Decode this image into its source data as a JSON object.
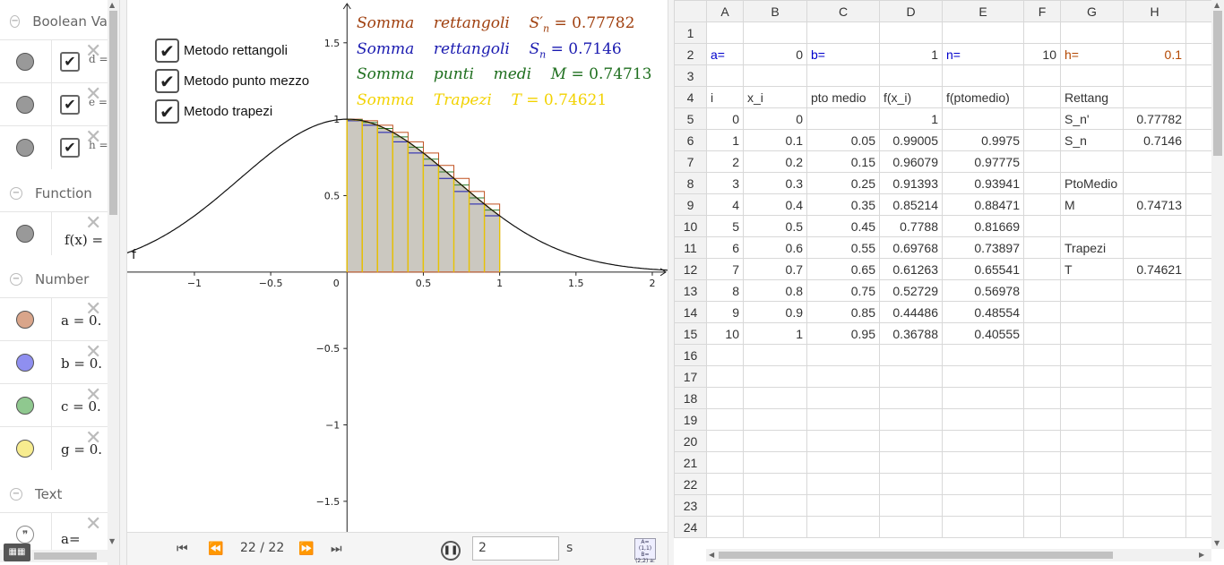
{
  "algebra": {
    "categories": [
      {
        "label": "Boolean Va"
      },
      {
        "label": "Function"
      },
      {
        "label": "Number"
      },
      {
        "label": "Text"
      }
    ],
    "boolean_items": [
      {
        "name": "d =",
        "checked": "✔"
      },
      {
        "name": "e =",
        "checked": "✔"
      },
      {
        "name": "h =",
        "checked": "✔"
      }
    ],
    "function_items": [
      {
        "expr": "f(x) ="
      }
    ],
    "number_items": [
      {
        "expr": "a = 0.",
        "color": "#d9a58a"
      },
      {
        "expr": "b = 0.",
        "color": "#8f8ff0"
      },
      {
        "expr": "c = 0.",
        "color": "#8fc88f"
      },
      {
        "expr": "g = 0.",
        "color": "#f7ec8f"
      }
    ],
    "text_items": [
      {
        "expr": "a="
      }
    ],
    "delete_glyph": "✕",
    "collapse_glyph": "−",
    "keyboard_label": "▦▦"
  },
  "graphics": {
    "checkboxes": [
      {
        "label": "Metodo rettangoli",
        "mark": "✔"
      },
      {
        "label": "Metodo punto mezzo",
        "mark": "✔"
      },
      {
        "label": "Metodo trapezi",
        "mark": "✔"
      }
    ],
    "sums": [
      {
        "w1": "Somma",
        "w2": "rettangoli",
        "sym": "S′",
        "sub": "n",
        "value": "= 0.77782",
        "color": "#a0400f"
      },
      {
        "w1": "Somma",
        "w2": "rettangoli",
        "sym": "S",
        "sub": "n",
        "value": "= 0.7146",
        "color": "#1a1ab0"
      },
      {
        "w1": "Somma",
        "w2": "punti",
        "w3": "medi",
        "sym": "M",
        "sub": "",
        "value": "= 0.74713",
        "color": "#1f6f1f"
      },
      {
        "w1": "Somma",
        "w2": "Trapezi",
        "sym": "T",
        "sub": "",
        "value": "= 0.74621",
        "color": "#f2d200"
      }
    ],
    "function_label": "f",
    "x_tick_labels": [
      "−1",
      "−0.5",
      "0",
      "0.5",
      "1",
      "1.5",
      "2"
    ],
    "y_tick_labels": [
      "1.5",
      "1",
      "0.5",
      "−0.5",
      "−1",
      "−1.5"
    ]
  },
  "chart_data": {
    "type": "area",
    "function": "f(x) = e^(-x^2)",
    "a": 0,
    "b": 1,
    "n": 10,
    "x": [
      0,
      0.1,
      0.2,
      0.3,
      0.4,
      0.5,
      0.6,
      0.7,
      0.8,
      0.9,
      1
    ],
    "f_x": [
      1,
      0.99005,
      0.96079,
      0.91393,
      0.85214,
      0.7788,
      0.69768,
      0.61263,
      0.52729,
      0.44486,
      0.36788
    ],
    "f_mid": [
      0.9975,
      0.97775,
      0.93941,
      0.88471,
      0.81669,
      0.73897,
      0.65541,
      0.56978,
      0.48554,
      0.40555
    ],
    "x_ticks": [
      -1,
      -0.5,
      0,
      0.5,
      1,
      1.5,
      2
    ],
    "y_ticks": [
      1.5,
      1,
      0.5,
      -0.5,
      -1,
      -1.5
    ],
    "xlim": [
      -1.44,
      2.1
    ],
    "ylim": [
      -1.7,
      1.78
    ],
    "series_colors": {
      "rect_upper": "#c0501f",
      "rect_lower": "#1a1ab0",
      "midpoint": "#2e7d2e",
      "trapezoid": "#e8c400",
      "fill": "#cbc8c0"
    }
  },
  "playbar": {
    "frame": "22 / 22",
    "speed": "2",
    "unit": "s",
    "buttons": {
      "first": "⏮",
      "prev": "⏪",
      "next": "⏩",
      "last": "⏭",
      "pause": "❚❚"
    },
    "style_glyph": "A=(1,1) B=(2,2) a: y=x"
  },
  "spreadsheet": {
    "columns": [
      "A",
      "B",
      "C",
      "D",
      "E",
      "F",
      "G",
      "H"
    ],
    "rows": [
      [
        "",
        "",
        "",
        "",
        "",
        "",
        "",
        ""
      ],
      [
        "a=",
        "0",
        "b=",
        "1",
        "n=",
        "10",
        "h=",
        "0.1"
      ],
      [
        "",
        "",
        "",
        "",
        "",
        "",
        "",
        ""
      ],
      [
        "i",
        "x_i",
        "pto medio",
        "f(x_i)",
        "f(ptomedio)",
        "",
        "Rettang",
        ""
      ],
      [
        "0",
        "0",
        "",
        "1",
        "",
        "",
        "S_n'",
        "0.77782"
      ],
      [
        "1",
        "0.1",
        "0.05",
        "0.99005",
        "0.9975",
        "",
        "S_n",
        "0.7146"
      ],
      [
        "2",
        "0.2",
        "0.15",
        "0.96079",
        "0.97775",
        "",
        "",
        ""
      ],
      [
        "3",
        "0.3",
        "0.25",
        "0.91393",
        "0.93941",
        "",
        "PtoMedio",
        ""
      ],
      [
        "4",
        "0.4",
        "0.35",
        "0.85214",
        "0.88471",
        "",
        "M",
        "0.74713"
      ],
      [
        "5",
        "0.5",
        "0.45",
        "0.7788",
        "0.81669",
        "",
        "",
        ""
      ],
      [
        "6",
        "0.6",
        "0.55",
        "0.69768",
        "0.73897",
        "",
        "Trapezi",
        ""
      ],
      [
        "7",
        "0.7",
        "0.65",
        "0.61263",
        "0.65541",
        "",
        "T",
        "0.74621"
      ],
      [
        "8",
        "0.8",
        "0.75",
        "0.52729",
        "0.56978",
        "",
        "",
        ""
      ],
      [
        "9",
        "0.9",
        "0.85",
        "0.44486",
        "0.48554",
        "",
        "",
        ""
      ],
      [
        "10",
        "1",
        "0.95",
        "0.36788",
        "0.40555",
        "",
        "",
        ""
      ],
      [
        "",
        "",
        "",
        "",
        "",
        "",
        "",
        ""
      ],
      [
        "",
        "",
        "",
        "",
        "",
        "",
        "",
        ""
      ],
      [
        "",
        "",
        "",
        "",
        "",
        "",
        "",
        ""
      ],
      [
        "",
        "",
        "",
        "",
        "",
        "",
        "",
        ""
      ],
      [
        "",
        "",
        "",
        "",
        "",
        "",
        "",
        ""
      ],
      [
        "",
        "",
        "",
        "",
        "",
        "",
        "",
        ""
      ],
      [
        "",
        "",
        "",
        "",
        "",
        "",
        "",
        ""
      ],
      [
        "",
        "",
        "",
        "",
        "",
        "",
        "",
        ""
      ],
      [
        "",
        "",
        "",
        "",
        "",
        "",
        "",
        ""
      ]
    ]
  }
}
